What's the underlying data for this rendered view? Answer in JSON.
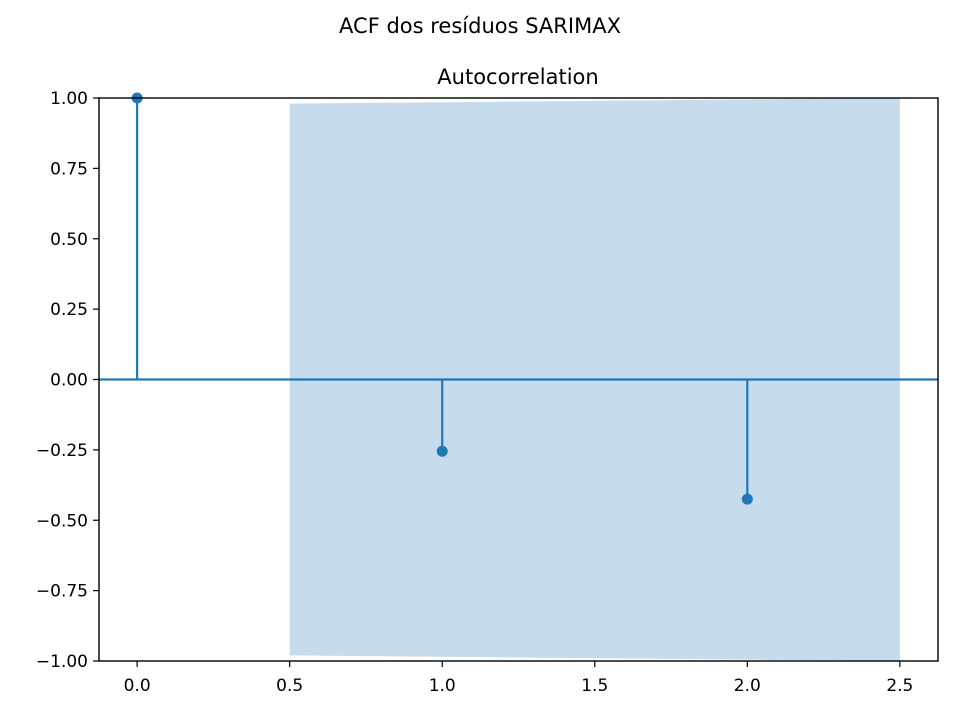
{
  "figure": {
    "suptitle": "ACF dos resíduos SARIMAX"
  },
  "colors": {
    "stem": "#1f77b4",
    "confidence_band": "#c6dbec",
    "axes": "#000000"
  },
  "chart_data": {
    "type": "stem",
    "title": "Autocorrelation",
    "xlabel": "",
    "ylabel": "",
    "xlim": [
      -0.125,
      2.625
    ],
    "ylim": [
      -1.0,
      1.0
    ],
    "grid": false,
    "x_ticks": [
      0.0,
      0.5,
      1.0,
      1.5,
      2.0,
      2.5
    ],
    "x_tick_labels": [
      "0.0",
      "0.5",
      "1.0",
      "1.5",
      "2.0",
      "2.5"
    ],
    "y_ticks": [
      -1.0,
      -0.75,
      -0.5,
      -0.25,
      0.0,
      0.25,
      0.5,
      0.75,
      1.0
    ],
    "y_tick_labels": [
      "−1.00",
      "−0.75",
      "−0.50",
      "−0.25",
      "0.00",
      "0.25",
      "0.50",
      "0.75",
      "1.00"
    ],
    "lags": [
      0,
      1,
      2
    ],
    "values": [
      1.0,
      -0.255,
      -0.425
    ],
    "zero_line": 0.0,
    "confidence_band": {
      "x": [
        0.5,
        2.5
      ],
      "upper": [
        0.98,
        1.0
      ],
      "lower": [
        -0.98,
        -1.0
      ]
    }
  }
}
